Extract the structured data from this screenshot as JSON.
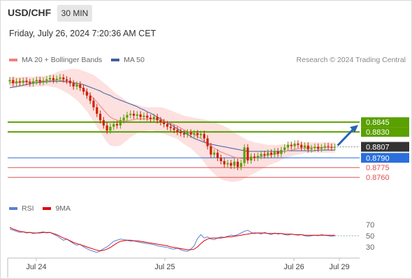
{
  "header": {
    "symbol": "USD/CHF",
    "timeframe": "30 MIN",
    "timestamp": "Friday, July 26, 2024 7:20:36 AM CET"
  },
  "legend": {
    "items": [
      {
        "label": "MA 20 + Bollinger Bands",
        "color": "#f08080"
      },
      {
        "label": "MA 50",
        "color": "#3f5f9f"
      }
    ],
    "credit": "Research © 2024 Trading Central"
  },
  "rsi_legend": {
    "items": [
      {
        "label": "RSI",
        "color": "#5b7fd6"
      },
      {
        "label": "9MA",
        "color": "#e00000"
      }
    ]
  },
  "colors": {
    "resistance": "#5aa000",
    "current": "#333333",
    "pivot": "#2a6fdb",
    "support": "#e05050",
    "candle_up": "#5aa000",
    "candle_down": "#cc2200",
    "band_fill": "#fde0e0",
    "ma20": "#f08080",
    "ma50": "#3f5f9f",
    "rsi": "#5b7fd6",
    "rsi_ma": "#e00000",
    "arrow": "#2a62b8"
  },
  "chart_data": [
    {
      "type": "candlestick",
      "title": "",
      "x_ticks": [
        "Jul 24",
        "Jul 25",
        "Jul 26",
        "Jul 29"
      ],
      "levels": [
        {
          "value": 0.8845,
          "label": "0.8845",
          "kind": "resistance"
        },
        {
          "value": 0.883,
          "label": "0.8830",
          "kind": "resistance"
        },
        {
          "value": 0.8807,
          "label": "0.8807",
          "kind": "current"
        },
        {
          "value": 0.879,
          "label": "0.8790",
          "kind": "pivot"
        },
        {
          "value": 0.8775,
          "label": "0.8775",
          "kind": "support"
        },
        {
          "value": 0.876,
          "label": "0.8760",
          "kind": "support"
        }
      ],
      "close": [
        0.891,
        0.8905,
        0.8908,
        0.8906,
        0.8909,
        0.8907,
        0.8905,
        0.8908,
        0.891,
        0.8907,
        0.8909,
        0.8911,
        0.8913,
        0.891,
        0.8912,
        0.8914,
        0.8911,
        0.8909,
        0.8905,
        0.89,
        0.8903,
        0.8898,
        0.8892,
        0.8886,
        0.8878,
        0.8868,
        0.8858,
        0.8848,
        0.884,
        0.8832,
        0.8838,
        0.8842,
        0.884,
        0.8848,
        0.8852,
        0.8856,
        0.8858,
        0.8855,
        0.8857,
        0.8853,
        0.8855,
        0.8852,
        0.885,
        0.8853,
        0.8848,
        0.8845,
        0.8842,
        0.8838,
        0.8836,
        0.8833,
        0.883,
        0.8828,
        0.8826,
        0.8829,
        0.8826,
        0.8828,
        0.8825,
        0.8827,
        0.882,
        0.8808,
        0.8795,
        0.8798,
        0.879,
        0.8785,
        0.878,
        0.8782,
        0.8778,
        0.8784,
        0.8776,
        0.8782,
        0.8806,
        0.8786,
        0.8792,
        0.879,
        0.8793,
        0.8796,
        0.8794,
        0.8798,
        0.8795,
        0.88,
        0.8796,
        0.8802,
        0.8806,
        0.881,
        0.8808,
        0.8812,
        0.881,
        0.8806,
        0.8809,
        0.8803,
        0.8805,
        0.8807,
        0.8804,
        0.8806,
        0.8808,
        0.8807,
        0.8806,
        0.8807
      ],
      "ma20": [
        0.8906,
        0.8906,
        0.8906,
        0.8907,
        0.8907,
        0.8907,
        0.8907,
        0.8907,
        0.8908,
        0.8908,
        0.8908,
        0.8909,
        0.8909,
        0.8909,
        0.891,
        0.891,
        0.8909,
        0.8908,
        0.8907,
        0.8905,
        0.8903,
        0.89,
        0.8896,
        0.8892,
        0.8887,
        0.8882,
        0.8876,
        0.887,
        0.8864,
        0.8858,
        0.8853,
        0.885,
        0.8848,
        0.8847,
        0.8847,
        0.8847,
        0.8848,
        0.8849,
        0.885,
        0.885,
        0.885,
        0.885,
        0.885,
        0.885,
        0.8849,
        0.8848,
        0.8847,
        0.8845,
        0.8843,
        0.8841,
        0.8839,
        0.8836,
        0.8833,
        0.8831,
        0.8829,
        0.8826,
        0.8823,
        0.882,
        0.8816,
        0.8812,
        0.8808,
        0.8805,
        0.8802,
        0.8799,
        0.8797,
        0.8795,
        0.8793,
        0.8791,
        0.879,
        0.8789,
        0.8789,
        0.8789,
        0.879,
        0.879,
        0.8791,
        0.8792,
        0.8793,
        0.8794,
        0.8795,
        0.8796,
        0.8797,
        0.8799,
        0.88,
        0.8801,
        0.8802,
        0.8803,
        0.8804,
        0.8805,
        0.8805,
        0.8806,
        0.8806,
        0.8806,
        0.8806,
        0.8806,
        0.8806,
        0.8806,
        0.8806,
        0.8806
      ],
      "ma50": [
        0.8898,
        0.8899,
        0.89,
        0.8901,
        0.8902,
        0.8903,
        0.8904,
        0.8905,
        0.8906,
        0.8906,
        0.8907,
        0.8907,
        0.8908,
        0.8908,
        0.8908,
        0.8908,
        0.8908,
        0.8907,
        0.8907,
        0.8906,
        0.8905,
        0.8904,
        0.8903,
        0.8901,
        0.8899,
        0.8897,
        0.8895,
        0.8893,
        0.889,
        0.8888,
        0.8886,
        0.8883,
        0.8881,
        0.8879,
        0.8877,
        0.8875,
        0.8873,
        0.8871,
        0.8869,
        0.8866,
        0.8864,
        0.8861,
        0.8859,
        0.8856,
        0.8853,
        0.885,
        0.8847,
        0.8844,
        0.8841,
        0.8838,
        0.8835,
        0.8832,
        0.8829,
        0.8826,
        0.8823,
        0.882,
        0.8818,
        0.8816,
        0.8814,
        0.8812,
        0.8811,
        0.881,
        0.8809,
        0.8808,
        0.8807,
        0.8806,
        0.8805,
        0.8804,
        0.8803,
        0.8802,
        0.8801,
        0.88,
        0.88,
        0.88,
        0.88,
        0.88,
        0.88,
        0.88,
        0.88,
        0.88,
        0.88,
        0.88,
        0.88,
        0.8801,
        0.8801,
        0.8801,
        0.8801,
        0.8801,
        0.8801,
        0.8801,
        0.8801,
        0.8801,
        0.8802,
        0.8802,
        0.8802,
        0.8802,
        0.8802,
        0.8802
      ],
      "band_halfwidth": [
        0.0008,
        0.0008,
        0.0008,
        0.0008,
        0.0008,
        0.0008,
        0.0008,
        0.0008,
        0.0008,
        0.0008,
        0.0008,
        0.0008,
        0.0009,
        0.001,
        0.0012,
        0.0014,
        0.0016,
        0.0018,
        0.002,
        0.0022,
        0.0024,
        0.0026,
        0.0028,
        0.003,
        0.0033,
        0.0036,
        0.0038,
        0.004,
        0.0042,
        0.0044,
        0.0044,
        0.0042,
        0.004,
        0.0038,
        0.0034,
        0.003,
        0.0026,
        0.0024,
        0.0022,
        0.002,
        0.0019,
        0.0018,
        0.0018,
        0.0018,
        0.0019,
        0.002,
        0.002,
        0.002,
        0.002,
        0.002,
        0.002,
        0.0021,
        0.0022,
        0.0023,
        0.0024,
        0.0026,
        0.0028,
        0.003,
        0.0033,
        0.0036,
        0.0038,
        0.004,
        0.0041,
        0.0042,
        0.0042,
        0.0041,
        0.004,
        0.0038,
        0.0036,
        0.0034,
        0.0031,
        0.0028,
        0.0026,
        0.0024,
        0.0022,
        0.002,
        0.0018,
        0.0016,
        0.0015,
        0.0014,
        0.0013,
        0.0012,
        0.0011,
        0.001,
        0.001,
        0.0009,
        0.0009,
        0.0009,
        0.0008,
        0.0008,
        0.0008,
        0.0008,
        0.0008,
        0.0008,
        0.0008,
        0.0008,
        0.0008,
        0.0008
      ],
      "ylim": [
        0.8743,
        0.8928
      ],
      "projection": {
        "from": 0.8807,
        "to": 0.8845
      }
    },
    {
      "type": "line",
      "title": "RSI",
      "y_ticks": [
        70,
        50,
        30
      ],
      "ylim": [
        15,
        85
      ],
      "series": [
        {
          "name": "RSI",
          "values": [
            62,
            60,
            58,
            56,
            57,
            55,
            56,
            54,
            55,
            56,
            57,
            55,
            56,
            53,
            50,
            46,
            42,
            44,
            40,
            36,
            33,
            35,
            30,
            27,
            24,
            22,
            20,
            23,
            27,
            30,
            35,
            40,
            42,
            44,
            43,
            42,
            40,
            41,
            39,
            38,
            37,
            36,
            35,
            34,
            32,
            31,
            30,
            29,
            27,
            26,
            28,
            25,
            23,
            22,
            26,
            32,
            45,
            52,
            46,
            48,
            44,
            43,
            46,
            48,
            47,
            49,
            51,
            50,
            52,
            55,
            58,
            60,
            56,
            54,
            55,
            53,
            56,
            54,
            52,
            55,
            53,
            54,
            52,
            51,
            53,
            52,
            51,
            52,
            50,
            49,
            50,
            51,
            50,
            52,
            51,
            50,
            49,
            50
          ]
        },
        {
          "name": "9MA",
          "values": [
            65,
            62,
            60,
            58,
            57,
            56,
            56,
            55,
            55,
            55,
            56,
            56,
            56,
            54,
            52,
            49,
            46,
            44,
            41,
            38,
            36,
            34,
            32,
            30,
            28,
            26,
            24,
            23,
            24,
            26,
            29,
            33,
            37,
            40,
            41,
            42,
            42,
            41,
            41,
            40,
            39,
            38,
            37,
            36,
            35,
            34,
            33,
            32,
            30,
            29,
            28,
            27,
            26,
            25,
            25,
            26,
            30,
            36,
            41,
            44,
            46,
            46,
            46,
            46,
            47,
            48,
            48,
            49,
            50,
            51,
            52,
            53,
            54,
            55,
            55,
            55,
            55,
            54,
            54,
            54,
            54,
            54,
            53,
            53,
            53,
            52,
            52,
            52,
            51,
            51,
            51,
            51,
            51,
            51,
            51,
            51,
            51,
            51
          ]
        }
      ]
    }
  ]
}
